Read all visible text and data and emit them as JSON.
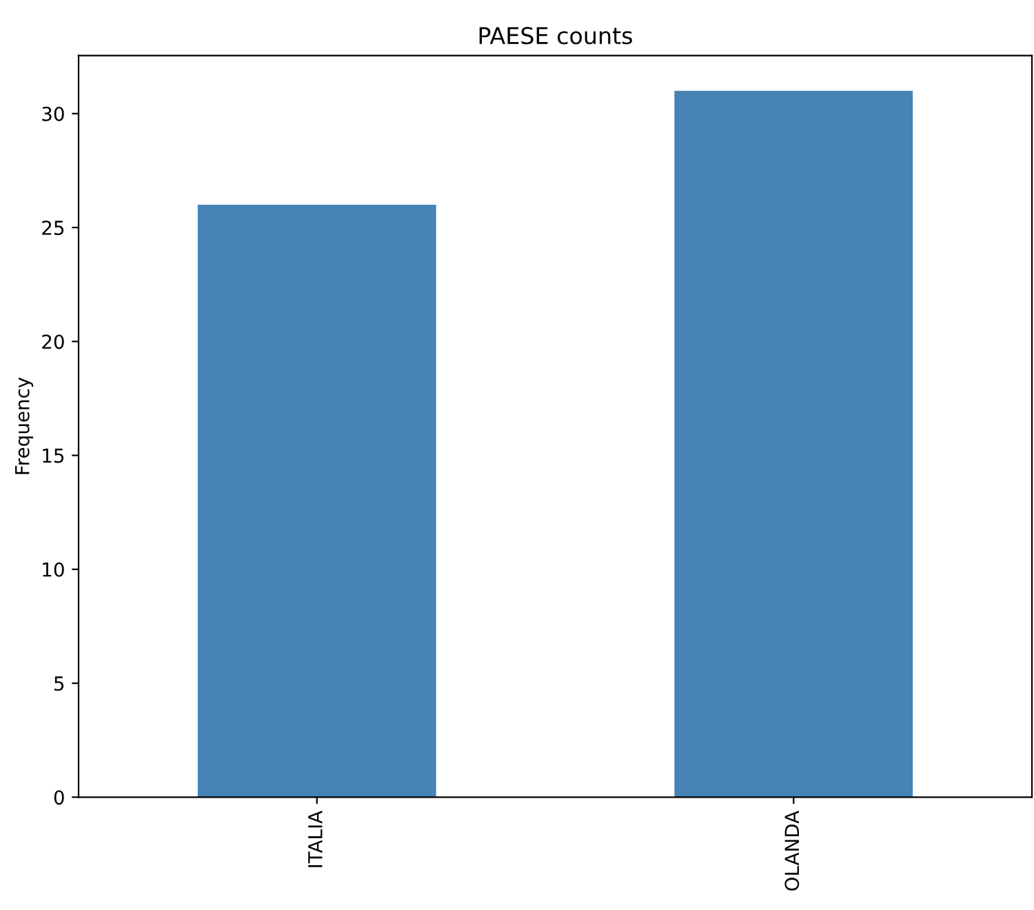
{
  "chart_data": {
    "type": "bar",
    "title": "PAESE counts",
    "ylabel": "Frequency",
    "categories": [
      "ITALIA",
      "OLANDA"
    ],
    "values": [
      26,
      31
    ],
    "color": "#4682b4",
    "ylim": [
      0,
      32.55
    ],
    "yticks": [
      0,
      5,
      10,
      15,
      20,
      25,
      30
    ],
    "grid": false
  }
}
